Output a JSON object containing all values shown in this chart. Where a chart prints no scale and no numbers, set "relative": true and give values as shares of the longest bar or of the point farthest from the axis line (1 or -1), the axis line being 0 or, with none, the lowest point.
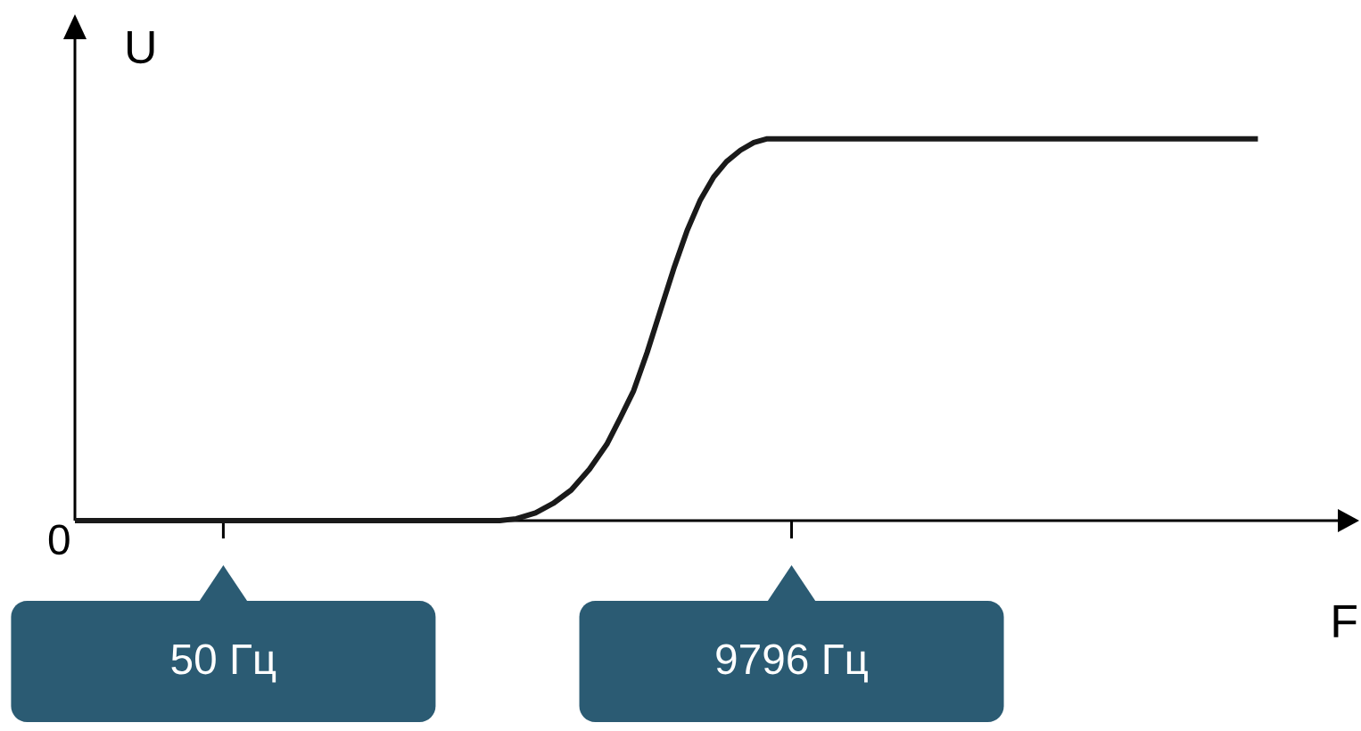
{
  "chart_data": {
    "type": "line",
    "relative": true,
    "log": "x",
    "xlabel": "F",
    "ylabel": "U",
    "annotations": [
      "0"
    ],
    "marker": "none",
    "color": "#1a1a1a",
    "x": [
      12.6,
      652,
      760,
      908,
      1070,
      1265,
      1500,
      1762,
      2000,
      2259,
      2560,
      2897,
      3280,
      3715,
      4200,
      4753,
      5350,
      6095,
      6900,
      7816,
      745000
    ],
    "values": [
      0,
      0,
      0.005,
      0.02,
      0.045,
      0.08,
      0.135,
      0.2,
      0.27,
      0.34,
      0.44,
      0.55,
      0.66,
      0.76,
      0.84,
      0.9,
      0.94,
      0.97,
      0.99,
      1,
      1
    ],
    "xlim": [
      12.6,
      1700000
    ],
    "xticks": [
      {
        "value": 50,
        "label": "50 Гц"
      },
      {
        "value": 9796,
        "label": "9796 Гц"
      }
    ]
  }
}
